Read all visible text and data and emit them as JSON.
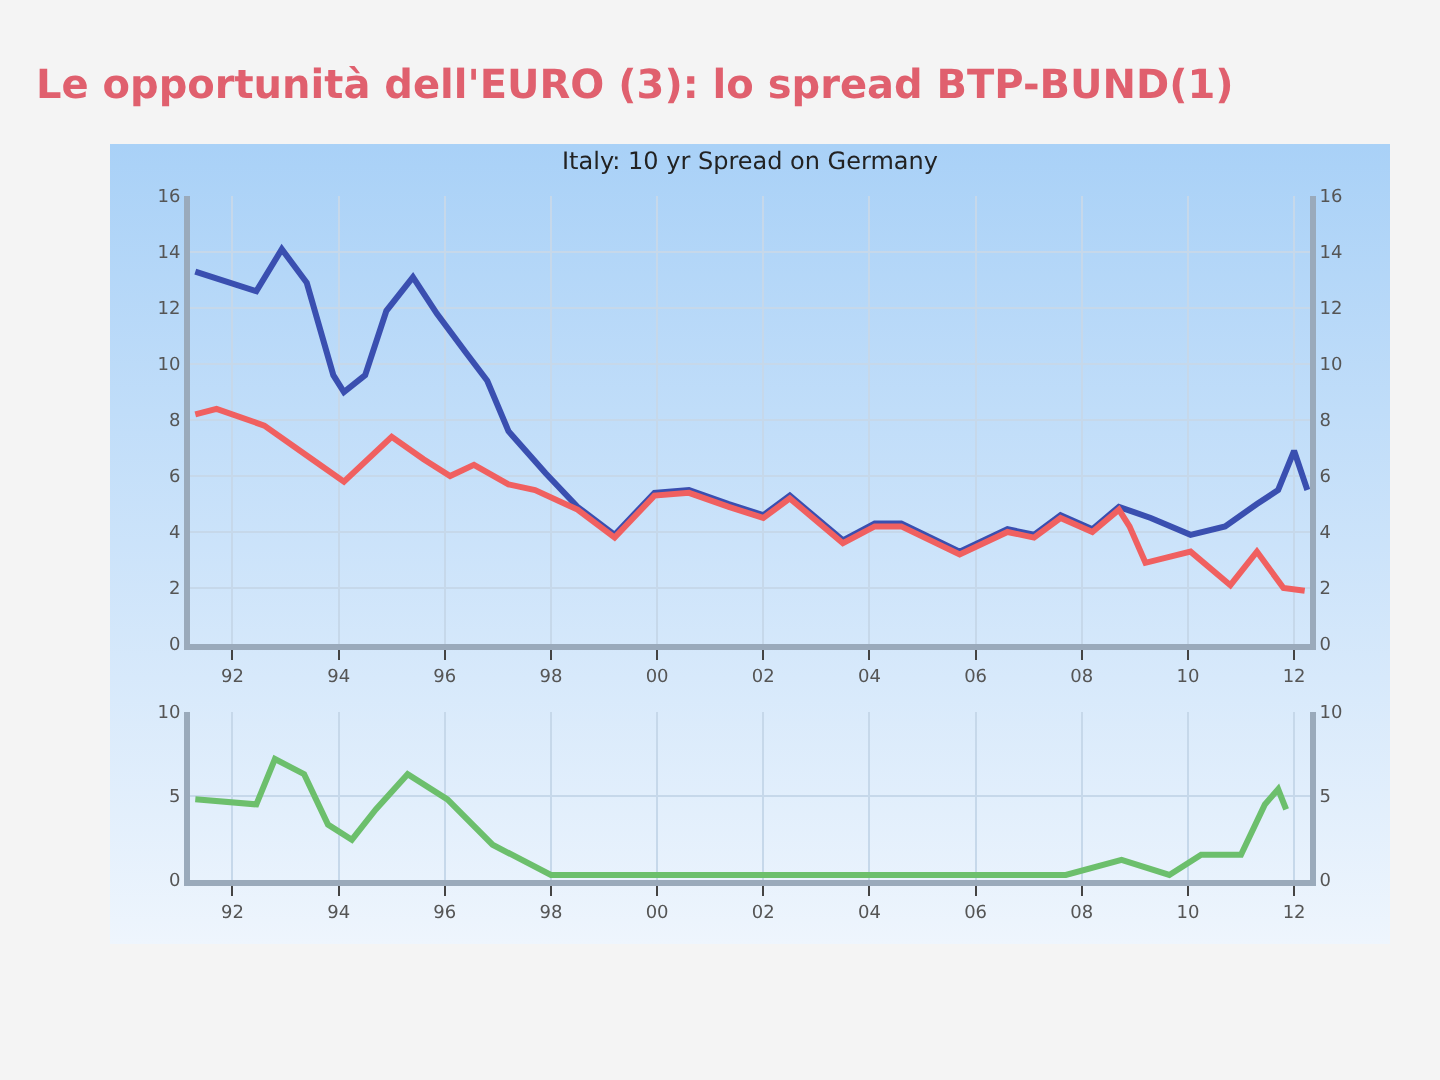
{
  "chart_data": [
    {
      "type": "line",
      "title": "Le opportunità dell'EURO (3): lo spread BTP-BUND(1)",
      "subtitle": "Italy: 10 yr Spread on Germany",
      "xlim": [
        1991.2,
        2012.3
      ],
      "xticks": [
        {
          "value": 1992,
          "label": "92"
        },
        {
          "value": 1994,
          "label": "94"
        },
        {
          "value": 1996,
          "label": "96"
        },
        {
          "value": 1998,
          "label": "98"
        },
        {
          "value": 2000,
          "label": "00"
        },
        {
          "value": 2002,
          "label": "02"
        },
        {
          "value": 2004,
          "label": "04"
        },
        {
          "value": 2006,
          "label": "06"
        },
        {
          "value": 2008,
          "label": "08"
        },
        {
          "value": 2010,
          "label": "10"
        },
        {
          "value": 2012,
          "label": "12"
        }
      ],
      "ylim": [
        0,
        16
      ],
      "yticks": [
        0,
        2,
        4,
        6,
        8,
        10,
        12,
        14,
        16
      ],
      "y2lim": [
        0,
        16
      ],
      "y2ticks": [
        0,
        2,
        4,
        6,
        8,
        10,
        12,
        14,
        16
      ],
      "grid": true,
      "series": [
        {
          "color": "#3a4fb0",
          "x": [
            1991.3,
            1992.45,
            1992.93,
            1993.4,
            1993.9,
            1994.1,
            1994.5,
            1994.9,
            1995.4,
            1995.85,
            1996.4,
            1996.8,
            1997.2,
            1997.9,
            1998.5,
            1999.2,
            1999.95,
            2000.6,
            2001.35,
            2002.0,
            2002.5,
            2003.5,
            2004.1,
            2004.6,
            2005.7,
            2006.6,
            2007.1,
            2007.6,
            2008.2,
            2008.7,
            2009.3,
            2010.05,
            2010.7,
            2011.3,
            2011.7,
            2012.0,
            2012.25
          ],
          "values": [
            13.3,
            12.6,
            14.1,
            12.9,
            9.6,
            9.0,
            9.6,
            11.9,
            13.1,
            11.8,
            10.4,
            9.4,
            7.6,
            6.1,
            4.9,
            3.9,
            5.4,
            5.5,
            5.0,
            4.6,
            5.3,
            3.7,
            4.3,
            4.3,
            3.3,
            4.1,
            3.9,
            4.6,
            4.1,
            4.9,
            4.5,
            3.9,
            4.2,
            5.0,
            5.5,
            6.9,
            5.5
          ]
        },
        {
          "color": "#f06060",
          "x": [
            1991.3,
            1991.7,
            1992.6,
            1993.5,
            1994.1,
            1995.0,
            1995.6,
            1996.1,
            1996.55,
            1997.2,
            1997.7,
            1998.5,
            1999.2,
            1999.95,
            2000.6,
            2001.35,
            2002.0,
            2002.5,
            2003.5,
            2004.1,
            2004.6,
            2005.7,
            2006.6,
            2007.1,
            2007.6,
            2008.2,
            2008.7,
            2008.9,
            2009.2,
            2010.05,
            2010.8,
            2011.3,
            2011.8,
            2012.2
          ],
          "values": [
            8.2,
            8.4,
            7.8,
            6.6,
            5.8,
            7.4,
            6.6,
            6.0,
            6.4,
            5.7,
            5.5,
            4.8,
            3.8,
            5.3,
            5.4,
            4.9,
            4.5,
            5.2,
            3.6,
            4.2,
            4.2,
            3.2,
            4.0,
            3.8,
            4.5,
            4.0,
            4.8,
            4.2,
            2.9,
            3.3,
            2.1,
            3.3,
            2.0,
            1.9
          ]
        }
      ]
    },
    {
      "type": "line",
      "xlim": [
        1991.2,
        2012.3
      ],
      "xticks": [
        {
          "value": 1992,
          "label": "92"
        },
        {
          "value": 1994,
          "label": "94"
        },
        {
          "value": 1996,
          "label": "96"
        },
        {
          "value": 1998,
          "label": "98"
        },
        {
          "value": 2000,
          "label": "00"
        },
        {
          "value": 2002,
          "label": "02"
        },
        {
          "value": 2004,
          "label": "04"
        },
        {
          "value": 2006,
          "label": "06"
        },
        {
          "value": 2008,
          "label": "08"
        },
        {
          "value": 2010,
          "label": "10"
        },
        {
          "value": 2012,
          "label": "12"
        }
      ],
      "ylim": [
        0,
        10
      ],
      "yticks": [
        0,
        5,
        10
      ],
      "y2lim": [
        0,
        10
      ],
      "y2ticks": [
        0,
        5,
        10
      ],
      "grid": true,
      "series": [
        {
          "color": "#6cbf6c",
          "x": [
            1991.3,
            1992.45,
            1992.8,
            1993.35,
            1993.8,
            1994.25,
            1994.7,
            1995.3,
            1996.05,
            1996.9,
            1998.0,
            2007.7,
            2008.75,
            2009.65,
            2010.25,
            2011.0,
            2011.45,
            2011.7,
            2011.85
          ],
          "values": [
            4.8,
            4.5,
            7.2,
            6.3,
            3.3,
            2.4,
            4.2,
            6.3,
            4.8,
            2.1,
            0.3,
            0.3,
            1.2,
            0.3,
            1.5,
            1.5,
            4.5,
            5.4,
            4.2
          ]
        }
      ]
    }
  ]
}
